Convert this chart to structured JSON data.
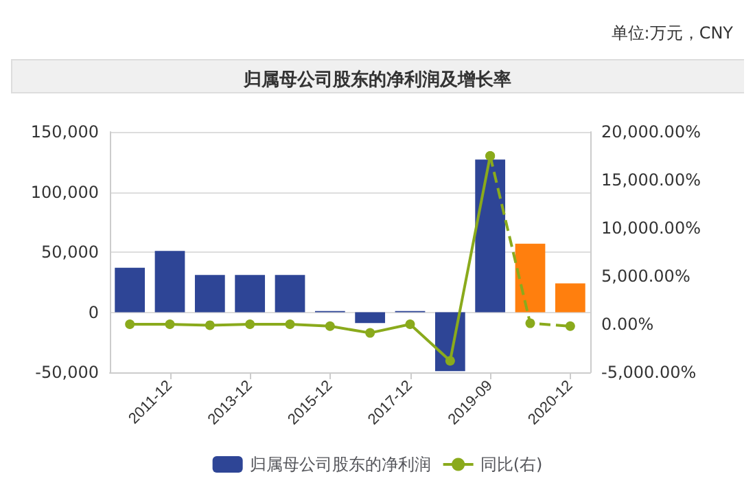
{
  "chart_data": {
    "type": "bar",
    "title": "归属母公司股东的净利润及增长率",
    "annotations": [
      "单位:万元，CNY"
    ],
    "categories": [
      null,
      "2011-12",
      null,
      "2013-12",
      null,
      "2015-12",
      null,
      "2017-12",
      null,
      "2019-09",
      null,
      "2020-12"
    ],
    "series": [
      {
        "name": "归属母公司股东的净利润",
        "color": "#2e4596",
        "colors": [
          "#2e4596",
          "#2e4596",
          "#2e4596",
          "#2e4596",
          "#2e4596",
          "#2e4596",
          "#2e4596",
          "#2e4596",
          "#2e4596",
          "#2e4596",
          "#ff7f0e",
          "#ff7f0e"
        ],
        "values": [
          37000,
          51000,
          31000,
          31000,
          31000,
          1000,
          -9000,
          1000,
          -49000,
          127000,
          57000,
          24000
        ]
      },
      {
        "name": "同比(右)",
        "type": "line",
        "axis": "y2",
        "color": "#8aaa1c",
        "line_style": "solid",
        "values": [
          0,
          0,
          -100,
          0,
          0,
          -200,
          -900,
          0,
          -3800,
          17500,
          null,
          null
        ]
      },
      {
        "type": "line",
        "axis": "y2",
        "color": "#8aaa1c",
        "line_style": "dashed",
        "values": [
          null,
          null,
          null,
          null,
          null,
          null,
          null,
          null,
          null,
          17500,
          100,
          -200
        ]
      }
    ],
    "ylim": [
      -50000,
      150000
    ],
    "yticks": [
      {
        "value": -50000,
        "label": "-50,000"
      },
      {
        "value": 0,
        "label": "0"
      },
      {
        "value": 50000,
        "label": "50,000"
      },
      {
        "value": 100000,
        "label": "100,000"
      },
      {
        "value": 150000,
        "label": "150,000"
      }
    ],
    "y2lim": [
      -5000,
      20000
    ],
    "y2ticks": [
      {
        "value": -5000,
        "label": "-5,000.00%"
      },
      {
        "value": 0,
        "label": "0.00%"
      },
      {
        "value": 5000,
        "label": "5,000.00%"
      },
      {
        "value": 10000,
        "label": "10,000.00%"
      },
      {
        "value": 15000,
        "label": "15,000.00%"
      },
      {
        "value": 20000,
        "label": "20,000.00%"
      }
    ],
    "grid": "y",
    "legend": "bottom",
    "marker": "circle"
  }
}
